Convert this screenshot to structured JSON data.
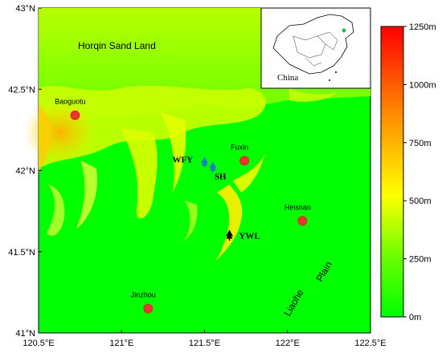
{
  "map": {
    "lat_ticks": [
      "43°N",
      "42.5°N",
      "42°N",
      "41.5°N",
      "41°N"
    ],
    "lon_ticks": [
      "120.5°E",
      "121°E",
      "121.5°E",
      "122°E",
      "122.5°E"
    ],
    "regions": {
      "horqin": "Horqin Sand Land",
      "liaohe": "Liaohe",
      "plain": "Plain"
    },
    "cities": [
      {
        "name": "Baoguotu",
        "lon": 120.72,
        "lat": 42.34
      },
      {
        "name": "Fuxin",
        "lon": 121.74,
        "lat": 42.06
      },
      {
        "name": "Heishan",
        "lon": 122.09,
        "lat": 41.69
      },
      {
        "name": "Jinzhou",
        "lon": 121.16,
        "lat": 41.15
      }
    ],
    "sites": [
      {
        "name": "WFY",
        "lon": 121.5,
        "lat": 42.05,
        "color": "#1a7fc1"
      },
      {
        "name": "SH",
        "lon": 121.55,
        "lat": 42.02,
        "color": "#1a7fc1"
      },
      {
        "name": "YWL",
        "lon": 121.65,
        "lat": 41.6,
        "color": "#000000"
      }
    ],
    "inset_label": "China"
  },
  "legend": {
    "labels": [
      "1250m",
      "1000m",
      "750m",
      "500m",
      "250m",
      "0m"
    ],
    "colors": [
      "#ff0000",
      "#ff7f00",
      "#ffff00",
      "#00ff00"
    ]
  }
}
